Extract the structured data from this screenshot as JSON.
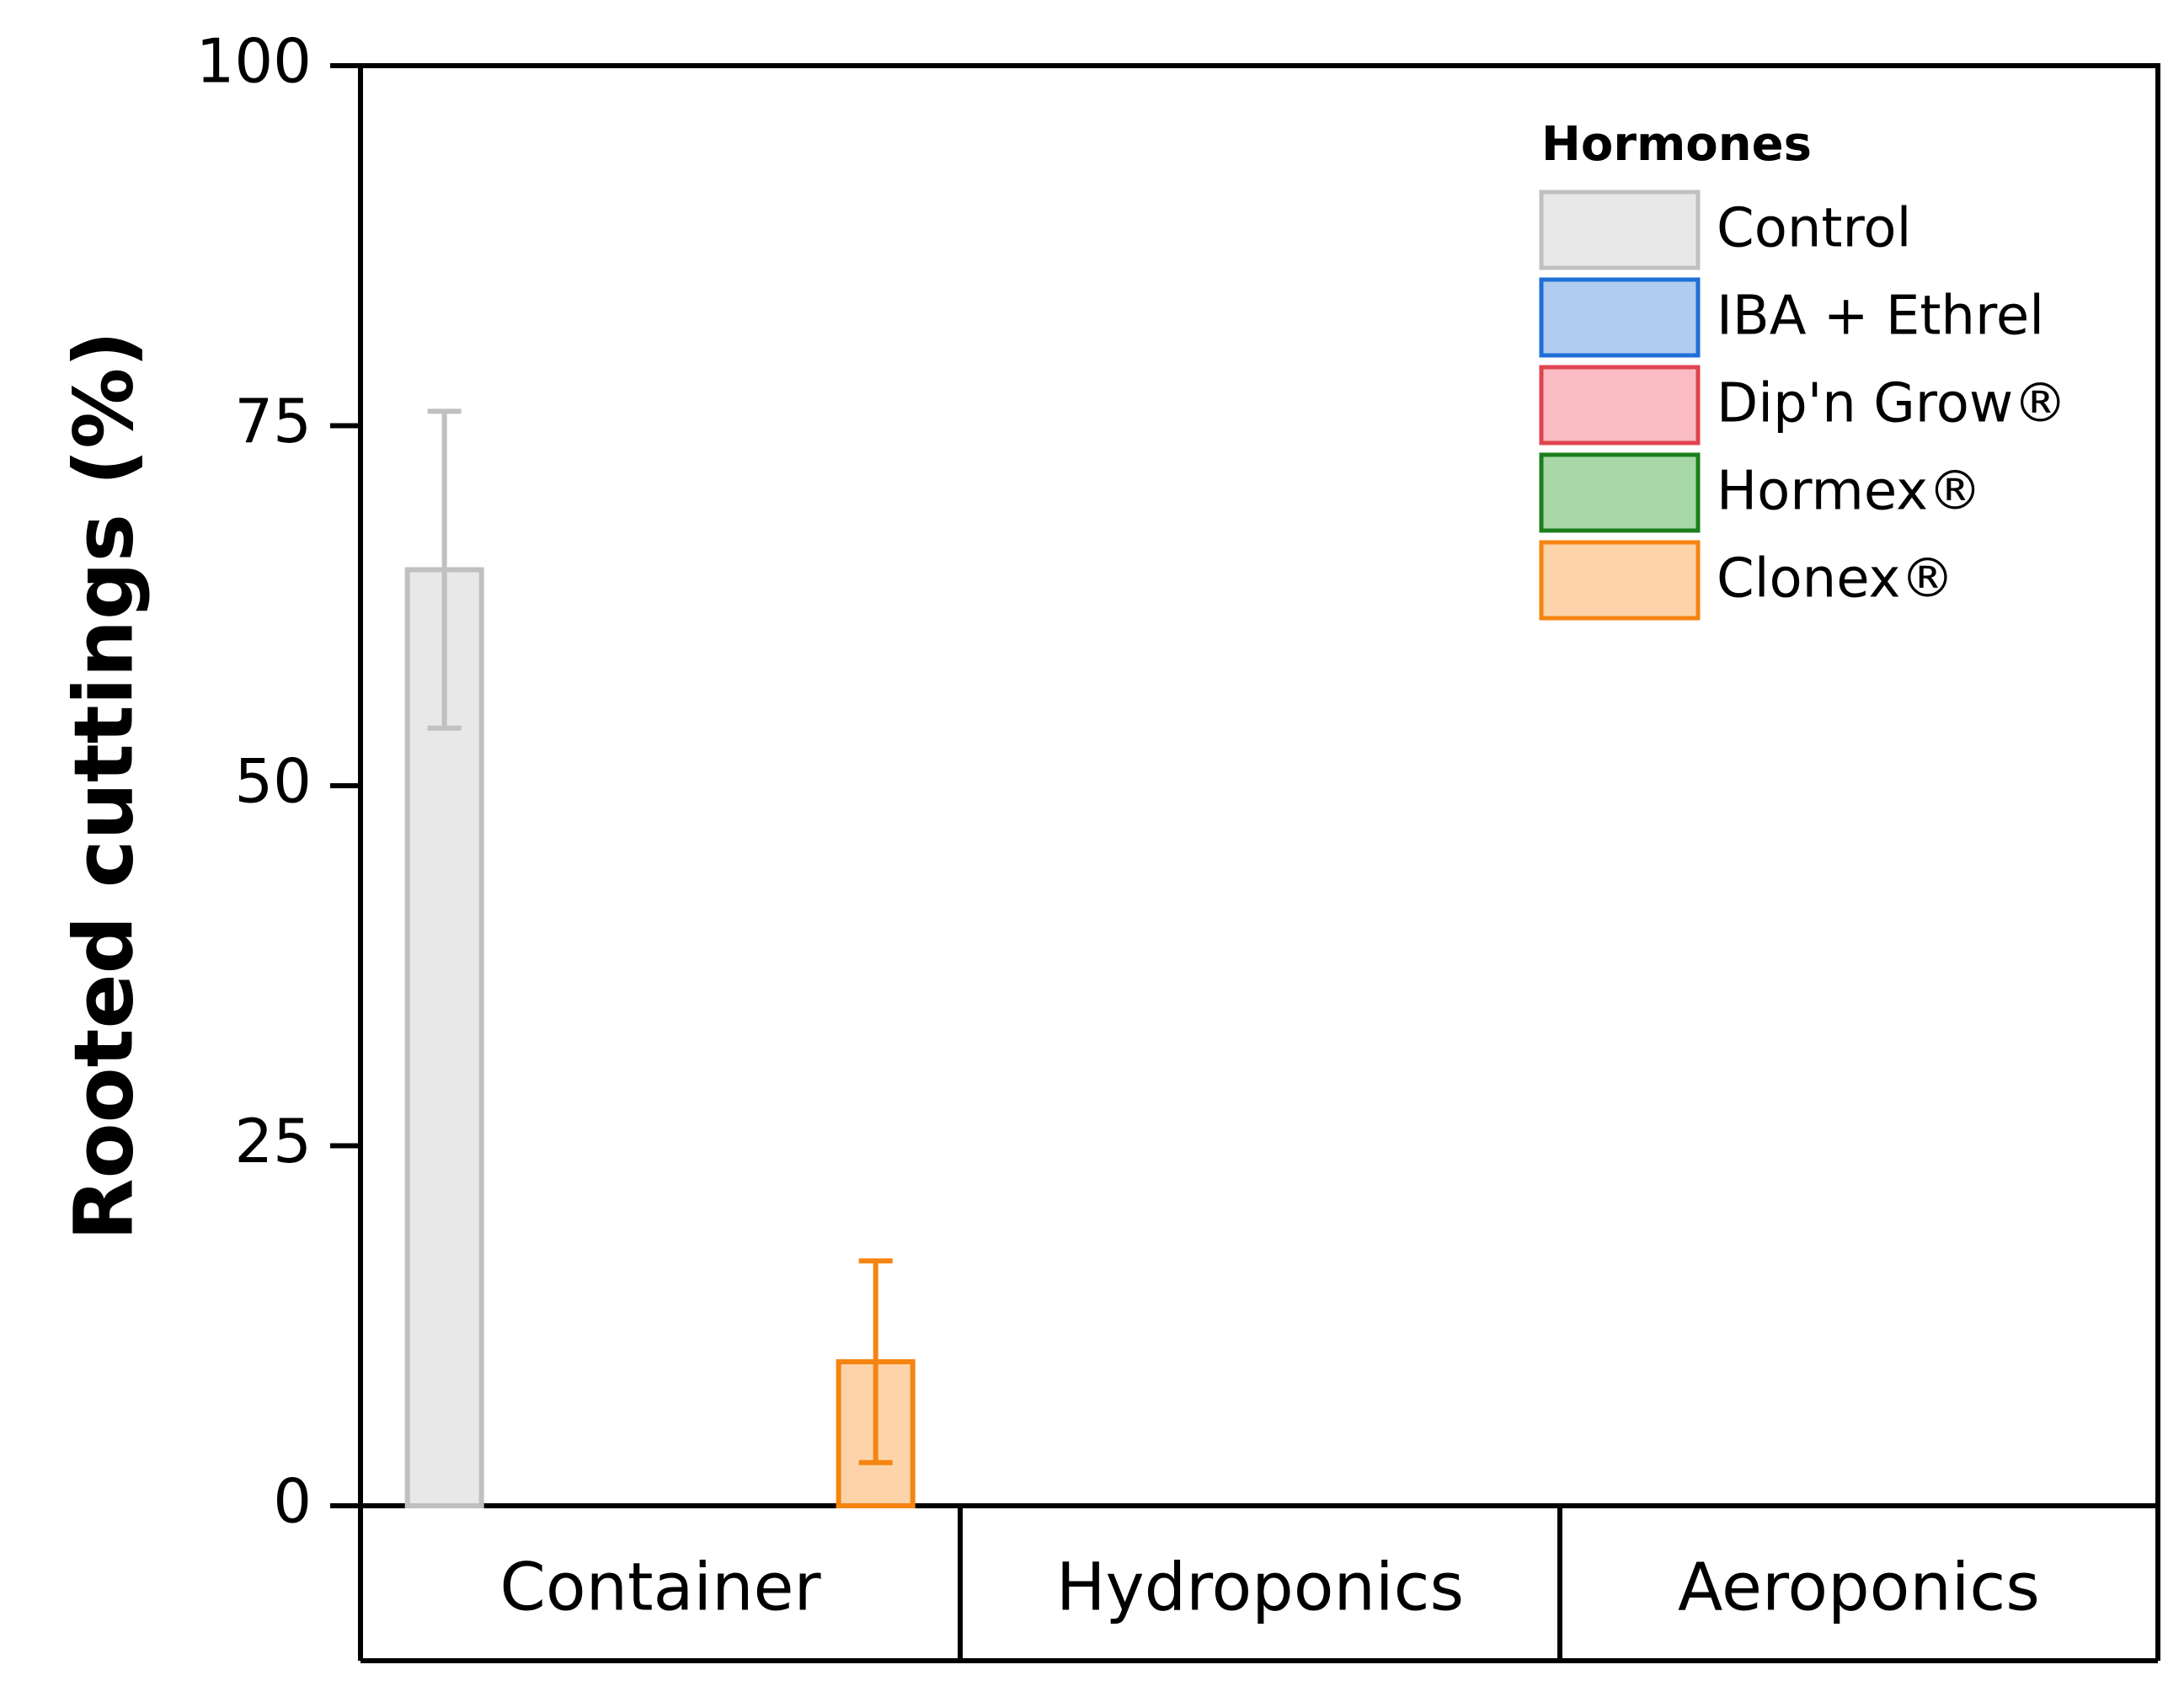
{
  "chart_data": {
    "type": "bar",
    "ylabel": "Rooted cuttings (%)",
    "ylim": [
      0,
      100
    ],
    "yticks": [
      0,
      25,
      50,
      75,
      100
    ],
    "categories": [
      "Container",
      "Hydroponics",
      "Aeroponics"
    ],
    "legend": {
      "title": "Hormones",
      "placement": "top-right"
    },
    "series": [
      {
        "name": "Control",
        "values": [
          65,
          0,
          0
        ],
        "error": [
          11,
          0,
          0
        ],
        "fill": "#e8e8e8",
        "stroke": "#c0c0c0"
      },
      {
        "name": "IBA + Ethrel",
        "values": [
          0,
          0,
          0
        ],
        "error": [
          0,
          0,
          0
        ],
        "fill": "#b0ccf0",
        "stroke": "#1f6fd6"
      },
      {
        "name": "Dip'n Grow®",
        "values": [
          0,
          0,
          0
        ],
        "error": [
          0,
          0,
          0
        ],
        "fill": "#f9bcc2",
        "stroke": "#e0434f"
      },
      {
        "name": "Hormex®",
        "values": [
          0,
          0,
          0
        ],
        "error": [
          0,
          0,
          0
        ],
        "fill": "#a8d8a8",
        "stroke": "#1b7f1b"
      },
      {
        "name": "Clonex®",
        "values": [
          10,
          0,
          0
        ],
        "error": [
          7,
          0,
          0
        ],
        "fill": "#fdd4aa",
        "stroke": "#f58410"
      }
    ]
  }
}
